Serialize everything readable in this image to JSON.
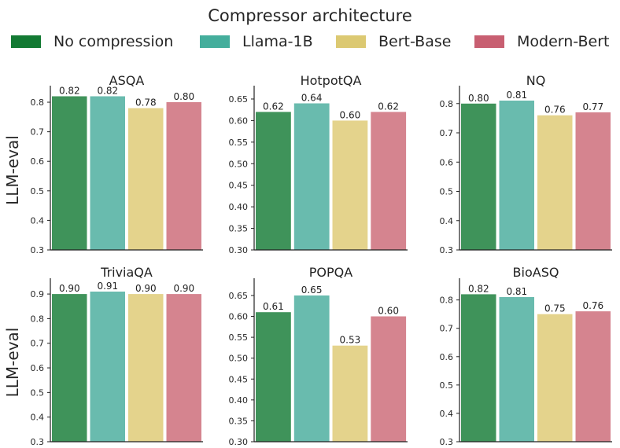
{
  "legend": {
    "title": "Compressor architecture",
    "items": [
      {
        "label": "No compression",
        "color": "#137a33"
      },
      {
        "label": "Llama-1B",
        "color": "#44ae9c"
      },
      {
        "label": "Bert-Base",
        "color": "#dcc972"
      },
      {
        "label": "Modern-Bert",
        "color": "#c85f71"
      }
    ]
  },
  "chart_data": [
    {
      "type": "bar",
      "title": "ASQA",
      "ylabel": "LLM-eval",
      "categories": [
        "No compression",
        "Llama-1B",
        "Bert-Base",
        "Modern-Bert"
      ],
      "values": [
        0.82,
        0.82,
        0.78,
        0.8
      ],
      "labels": [
        "0.82",
        "0.82",
        "0.78",
        "0.80"
      ],
      "ylim": [
        0.3,
        0.84
      ],
      "yticks": [
        0.3,
        0.4,
        0.5,
        0.6,
        0.7,
        0.8
      ],
      "yticklabels": [
        "0.3",
        "0.4",
        "0.5",
        "0.6",
        "0.7",
        "0.8"
      ]
    },
    {
      "type": "bar",
      "title": "HotpotQA",
      "ylabel": "",
      "categories": [
        "No compression",
        "Llama-1B",
        "Bert-Base",
        "Modern-Bert"
      ],
      "values": [
        0.62,
        0.64,
        0.6,
        0.62
      ],
      "labels": [
        "0.62",
        "0.64",
        "0.60",
        "0.62"
      ],
      "ylim": [
        0.3,
        0.67
      ],
      "yticks": [
        0.3,
        0.35,
        0.4,
        0.45,
        0.5,
        0.55,
        0.6,
        0.65
      ],
      "yticklabels": [
        "0.30",
        "0.35",
        "0.40",
        "0.45",
        "0.50",
        "0.55",
        "0.60",
        "0.65"
      ]
    },
    {
      "type": "bar",
      "title": "NQ",
      "ylabel": "",
      "categories": [
        "No compression",
        "Llama-1B",
        "Bert-Base",
        "Modern-Bert"
      ],
      "values": [
        0.8,
        0.81,
        0.76,
        0.77
      ],
      "labels": [
        "0.80",
        "0.81",
        "0.76",
        "0.77"
      ],
      "ylim": [
        0.3,
        0.845
      ],
      "yticks": [
        0.3,
        0.4,
        0.5,
        0.6,
        0.7,
        0.8
      ],
      "yticklabels": [
        "0.3",
        "0.4",
        "0.5",
        "0.6",
        "0.7",
        "0.8"
      ]
    },
    {
      "type": "bar",
      "title": "TriviaQA",
      "ylabel": "LLM-eval",
      "categories": [
        "No compression",
        "Llama-1B",
        "Bert-Base",
        "Modern-Bert"
      ],
      "values": [
        0.9,
        0.91,
        0.9,
        0.9
      ],
      "labels": [
        "0.90",
        "0.91",
        "0.90",
        "0.90"
      ],
      "ylim": [
        0.3,
        0.945
      ],
      "yticks": [
        0.3,
        0.4,
        0.5,
        0.6,
        0.7,
        0.8,
        0.9
      ],
      "yticklabels": [
        "0.3",
        "0.4",
        "0.5",
        "0.6",
        "0.7",
        "0.8",
        "0.9"
      ]
    },
    {
      "type": "bar",
      "title": "POPQA",
      "ylabel": "",
      "categories": [
        "No compression",
        "Llama-1B",
        "Bert-Base",
        "Modern-Bert"
      ],
      "values": [
        0.61,
        0.65,
        0.53,
        0.6
      ],
      "labels": [
        "0.61",
        "0.65",
        "0.53",
        "0.60"
      ],
      "ylim": [
        0.3,
        0.68
      ],
      "yticks": [
        0.3,
        0.35,
        0.4,
        0.45,
        0.5,
        0.55,
        0.6,
        0.65
      ],
      "yticklabels": [
        "0.30",
        "0.35",
        "0.40",
        "0.45",
        "0.50",
        "0.55",
        "0.60",
        "0.65"
      ]
    },
    {
      "type": "bar",
      "title": "BioASQ",
      "ylabel": "",
      "categories": [
        "No compression",
        "Llama-1B",
        "Bert-Base",
        "Modern-Bert"
      ],
      "values": [
        0.82,
        0.81,
        0.75,
        0.76
      ],
      "labels": [
        "0.82",
        "0.81",
        "0.75",
        "0.76"
      ],
      "ylim": [
        0.3,
        0.86
      ],
      "yticks": [
        0.3,
        0.4,
        0.5,
        0.6,
        0.7,
        0.8
      ],
      "yticklabels": [
        "0.3",
        "0.4",
        "0.5",
        "0.6",
        "0.7",
        "0.8"
      ]
    }
  ]
}
